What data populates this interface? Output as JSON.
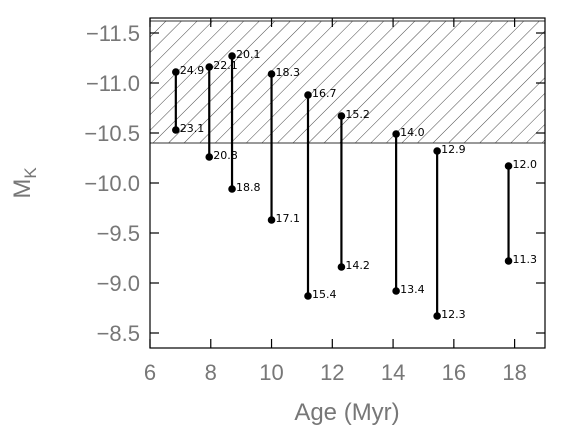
{
  "chart_data": {
    "type": "scatter",
    "xlabel": "Age (Myr)",
    "ylabel_main": "M",
    "ylabel_sub": "K",
    "xlim": [
      6,
      19
    ],
    "ylim": [
      -8.35,
      -11.65
    ],
    "y_inverted": true,
    "xticks": [
      6,
      8,
      10,
      12,
      14,
      16,
      18
    ],
    "yticks": [
      -8.5,
      -9.0,
      -9.5,
      -10.0,
      -10.5,
      -11.0,
      -11.5
    ],
    "ytick_labels": [
      "−8.5",
      "−9.0",
      "−9.5",
      "−10.0",
      "−10.5",
      "−11.0",
      "−11.5"
    ],
    "hatched_region": {
      "y_from": -10.4,
      "y_to": -11.62
    },
    "grid": false,
    "legend": "none",
    "series": [
      {
        "x": 6.85,
        "y_top": -11.11,
        "y_bottom": -10.53,
        "label_top": "24.9",
        "label_bottom": "23.1"
      },
      {
        "x": 7.95,
        "y_top": -11.16,
        "y_bottom": -10.26,
        "label_top": "22.1",
        "label_bottom": "20.8"
      },
      {
        "x": 8.7,
        "y_top": -11.27,
        "y_bottom": -9.94,
        "label_top": "20.1",
        "label_bottom": "18.8"
      },
      {
        "x": 10.0,
        "y_top": -11.09,
        "y_bottom": -9.63,
        "label_top": "18.3",
        "label_bottom": "17.1"
      },
      {
        "x": 11.2,
        "y_top": -10.88,
        "y_bottom": -8.87,
        "label_top": "16.7",
        "label_bottom": "15.4"
      },
      {
        "x": 12.3,
        "y_top": -10.67,
        "y_bottom": -9.16,
        "label_top": "15.2",
        "label_bottom": "14.2"
      },
      {
        "x": 14.1,
        "y_top": -10.49,
        "y_bottom": -8.92,
        "label_top": "14.0",
        "label_bottom": "13.4"
      },
      {
        "x": 15.45,
        "y_top": -10.32,
        "y_bottom": -8.67,
        "label_top": "12.9",
        "label_bottom": "12.3"
      },
      {
        "x": 17.8,
        "y_top": -10.17,
        "y_bottom": -9.22,
        "label_top": "12.0",
        "label_bottom": "11.3"
      }
    ]
  }
}
